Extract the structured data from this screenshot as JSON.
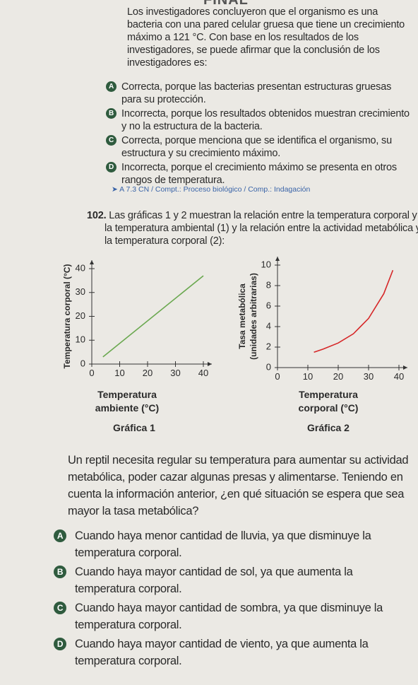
{
  "header": {
    "title": "FINAL"
  },
  "question_101": {
    "intro": "Los investigadores concluyeron que el organismo es una bacteria con una pared celular gruesa que tiene un crecimiento máximo a 121 °C. Con base en los resultados de los investigadores, se puede afirmar que la conclusión de los investigadores es:",
    "options": [
      {
        "letter": "A",
        "text": "Correcta, porque las bacterias presentan estructuras gruesas para su protección."
      },
      {
        "letter": "B",
        "text": "Incorrecta, porque los resultados obtenidos muestran crecimiento y no la estructura de la bacteria."
      },
      {
        "letter": "C",
        "text": "Correcta, porque menciona que se identifica el organismo, su estructura y su crecimiento máximo."
      },
      {
        "letter": "D",
        "text": "Incorrecta, porque el crecimiento máximo se presenta en otros rangos de temperatura."
      }
    ],
    "tag": "A 7.3 CN / Compt.: Proceso biológico / Comp.: Indagación"
  },
  "question_102": {
    "number": "102.",
    "intro": "Las gráficas 1 y 2 muestran la relación entre la temperatura corporal y la temperatura ambiental (1) y la relación entre la actividad metabólica y la temperatura corporal (2):",
    "charts": [
      {
        "type": "line",
        "caption": "Gráfica 1",
        "ylabel": [
          "Temperatura corporal (°C)"
        ],
        "xlabel": [
          "Temperatura",
          "ambiente (°C)"
        ],
        "x": [
          4,
          40
        ],
        "series": [
          {
            "color": "#6aa84f",
            "values": [
              3,
              37
            ]
          }
        ],
        "xlim": [
          0,
          40
        ],
        "ylim": [
          0,
          40
        ],
        "xticks": [
          0,
          10,
          20,
          30,
          40
        ],
        "yticks": [
          0,
          10,
          20,
          30,
          40
        ]
      },
      {
        "type": "line",
        "caption": "Gráfica 2",
        "ylabel": [
          "Tasa metabólica",
          "(unidades arbitrarias)"
        ],
        "xlabel": [
          "Temperatura",
          "corporal (°C)"
        ],
        "x": [
          12,
          15,
          20,
          25,
          30,
          35,
          38
        ],
        "series": [
          {
            "color": "#d62728",
            "values": [
              1.5,
              1.8,
              2.4,
              3.3,
              4.8,
              7.2,
              9.5
            ]
          }
        ],
        "xlim": [
          0,
          40
        ],
        "ylim": [
          0,
          10
        ],
        "xticks": [
          0,
          10,
          20,
          30,
          40
        ],
        "yticks": [
          0,
          2,
          4,
          6,
          8,
          10
        ]
      }
    ],
    "context": "Un reptil necesita regular su temperatura para aumentar su actividad metabólica, poder cazar algunas presas y alimentarse. Teniendo en cuenta la información anterior, ¿en qué situación se espera que sea mayor la tasa metabólica?",
    "options": [
      {
        "letter": "A",
        "text": "Cuando haya menor cantidad de lluvia, ya que disminuye la temperatura corporal."
      },
      {
        "letter": "B",
        "text": "Cuando haya mayor cantidad de sol, ya que aumenta la temperatura corporal."
      },
      {
        "letter": "C",
        "text": "Cuando haya mayor cantidad de sombra, ya que disminuye la temperatura corporal."
      },
      {
        "letter": "D",
        "text": "Cuando haya mayor cantidad de viento, ya que aumenta la temperatura corporal."
      }
    ]
  }
}
